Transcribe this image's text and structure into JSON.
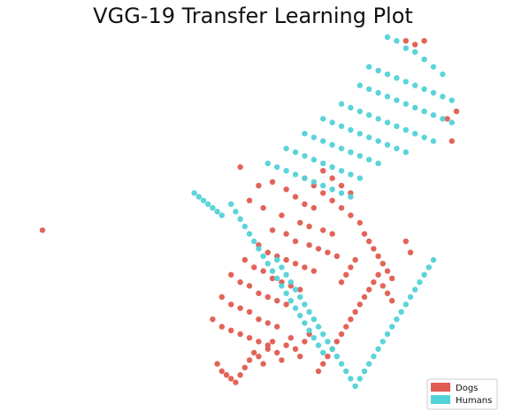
{
  "chart_data": {
    "type": "scatter",
    "title": "VGG-19 Transfer Learning Plot",
    "xlabel": "",
    "ylabel": "",
    "axes": "off",
    "grid": false,
    "legend_position": "bottom-right",
    "xlim": [
      0,
      100
    ],
    "ylim": [
      0,
      100
    ],
    "series": [
      {
        "name": "Dogs",
        "color": "#e05b50",
        "points": [
          [
            5,
            48
          ],
          [
            84,
            99
          ],
          [
            86,
            98
          ],
          [
            88,
            99
          ],
          [
            93,
            78
          ],
          [
            95,
            80
          ],
          [
            94,
            72
          ],
          [
            48,
            65
          ],
          [
            52,
            60
          ],
          [
            55,
            61
          ],
          [
            58,
            59
          ],
          [
            60,
            57
          ],
          [
            62,
            55
          ],
          [
            64,
            54
          ],
          [
            50,
            56
          ],
          [
            53,
            54
          ],
          [
            57,
            52
          ],
          [
            61,
            50
          ],
          [
            63,
            49
          ],
          [
            66,
            48
          ],
          [
            68,
            47
          ],
          [
            55,
            48
          ],
          [
            58,
            47
          ],
          [
            60,
            45
          ],
          [
            63,
            44
          ],
          [
            65,
            43
          ],
          [
            67,
            42
          ],
          [
            69,
            41
          ],
          [
            52,
            44
          ],
          [
            54,
            42
          ],
          [
            56,
            41
          ],
          [
            58,
            40
          ],
          [
            60,
            39
          ],
          [
            62,
            38
          ],
          [
            64,
            37
          ],
          [
            49,
            40
          ],
          [
            51,
            38
          ],
          [
            53,
            37
          ],
          [
            55,
            35
          ],
          [
            57,
            34
          ],
          [
            59,
            33
          ],
          [
            61,
            32
          ],
          [
            46,
            36
          ],
          [
            48,
            34
          ],
          [
            50,
            33
          ],
          [
            52,
            31
          ],
          [
            54,
            30
          ],
          [
            56,
            29
          ],
          [
            58,
            28
          ],
          [
            44,
            30
          ],
          [
            46,
            28
          ],
          [
            48,
            27
          ],
          [
            50,
            26
          ],
          [
            52,
            24
          ],
          [
            54,
            23
          ],
          [
            56,
            22
          ],
          [
            42,
            24
          ],
          [
            44,
            22
          ],
          [
            46,
            21
          ],
          [
            48,
            20
          ],
          [
            50,
            19
          ],
          [
            52,
            18
          ],
          [
            54,
            17
          ],
          [
            43,
            12
          ],
          [
            44,
            10
          ],
          [
            45,
            9
          ],
          [
            46,
            8
          ],
          [
            47,
            7
          ],
          [
            48,
            9
          ],
          [
            49,
            11
          ],
          [
            50,
            13
          ],
          [
            51,
            15
          ],
          [
            52,
            14
          ],
          [
            53,
            12
          ],
          [
            54,
            16
          ],
          [
            55,
            18
          ],
          [
            56,
            15
          ],
          [
            57,
            13
          ],
          [
            58,
            17
          ],
          [
            59,
            19
          ],
          [
            60,
            16
          ],
          [
            61,
            14
          ],
          [
            62,
            18
          ],
          [
            63,
            20
          ],
          [
            65,
            10
          ],
          [
            66,
            12
          ],
          [
            67,
            14
          ],
          [
            68,
            16
          ],
          [
            69,
            18
          ],
          [
            70,
            20
          ],
          [
            71,
            22
          ],
          [
            72,
            24
          ],
          [
            73,
            26
          ],
          [
            74,
            28
          ],
          [
            75,
            30
          ],
          [
            76,
            32
          ],
          [
            77,
            34
          ],
          [
            78,
            36
          ],
          [
            79,
            33
          ],
          [
            80,
            31
          ],
          [
            81,
            29
          ],
          [
            70,
            34
          ],
          [
            71,
            36
          ],
          [
            72,
            38
          ],
          [
            73,
            40
          ],
          [
            62,
            62
          ],
          [
            64,
            60
          ],
          [
            66,
            58
          ],
          [
            68,
            56
          ],
          [
            70,
            54
          ],
          [
            72,
            52
          ],
          [
            74,
            50
          ],
          [
            75,
            47
          ],
          [
            76,
            45
          ],
          [
            77,
            43
          ],
          [
            78,
            41
          ],
          [
            79,
            39
          ],
          [
            80,
            37
          ],
          [
            81,
            35
          ],
          [
            66,
            64
          ],
          [
            68,
            62
          ],
          [
            70,
            60
          ],
          [
            72,
            58
          ],
          [
            84,
            45
          ],
          [
            85,
            42
          ]
        ]
      },
      {
        "name": "Humans",
        "color": "#52d2d8",
        "points": [
          [
            80,
            100
          ],
          [
            82,
            99
          ],
          [
            84,
            97
          ],
          [
            86,
            96
          ],
          [
            88,
            94
          ],
          [
            90,
            92
          ],
          [
            92,
            90
          ],
          [
            76,
            92
          ],
          [
            78,
            91
          ],
          [
            80,
            90
          ],
          [
            82,
            89
          ],
          [
            84,
            88
          ],
          [
            86,
            87
          ],
          [
            88,
            86
          ],
          [
            90,
            85
          ],
          [
            92,
            84
          ],
          [
            94,
            83
          ],
          [
            74,
            87
          ],
          [
            76,
            86
          ],
          [
            78,
            85
          ],
          [
            80,
            84
          ],
          [
            82,
            83
          ],
          [
            84,
            82
          ],
          [
            86,
            81
          ],
          [
            88,
            80
          ],
          [
            90,
            79
          ],
          [
            92,
            78
          ],
          [
            94,
            77
          ],
          [
            70,
            82
          ],
          [
            72,
            81
          ],
          [
            74,
            80
          ],
          [
            76,
            79
          ],
          [
            78,
            78
          ],
          [
            80,
            77
          ],
          [
            82,
            76
          ],
          [
            84,
            75
          ],
          [
            86,
            74
          ],
          [
            88,
            73
          ],
          [
            90,
            72
          ],
          [
            66,
            78
          ],
          [
            68,
            77
          ],
          [
            70,
            76
          ],
          [
            72,
            75
          ],
          [
            74,
            74
          ],
          [
            76,
            73
          ],
          [
            78,
            72
          ],
          [
            80,
            71
          ],
          [
            82,
            70
          ],
          [
            84,
            69
          ],
          [
            62,
            74
          ],
          [
            64,
            73
          ],
          [
            66,
            72
          ],
          [
            68,
            71
          ],
          [
            70,
            70
          ],
          [
            72,
            69
          ],
          [
            74,
            68
          ],
          [
            76,
            67
          ],
          [
            78,
            66
          ],
          [
            58,
            70
          ],
          [
            60,
            69
          ],
          [
            62,
            68
          ],
          [
            64,
            67
          ],
          [
            66,
            66
          ],
          [
            68,
            65
          ],
          [
            70,
            64
          ],
          [
            72,
            63
          ],
          [
            74,
            62
          ],
          [
            54,
            66
          ],
          [
            56,
            65
          ],
          [
            58,
            64
          ],
          [
            60,
            63
          ],
          [
            62,
            62
          ],
          [
            64,
            61
          ],
          [
            66,
            60
          ],
          [
            68,
            59
          ],
          [
            70,
            58
          ],
          [
            72,
            57
          ],
          [
            38,
            58
          ],
          [
            39,
            57
          ],
          [
            40,
            56
          ],
          [
            41,
            55
          ],
          [
            42,
            54
          ],
          [
            43,
            53
          ],
          [
            44,
            52
          ],
          [
            46,
            55
          ],
          [
            47,
            53
          ],
          [
            48,
            51
          ],
          [
            49,
            49
          ],
          [
            50,
            47
          ],
          [
            51,
            45
          ],
          [
            52,
            43
          ],
          [
            53,
            41
          ],
          [
            54,
            39
          ],
          [
            55,
            37
          ],
          [
            56,
            35
          ],
          [
            57,
            33
          ],
          [
            58,
            31
          ],
          [
            59,
            29
          ],
          [
            60,
            27
          ],
          [
            61,
            25
          ],
          [
            62,
            23
          ],
          [
            63,
            21
          ],
          [
            64,
            19
          ],
          [
            65,
            17
          ],
          [
            66,
            15
          ],
          [
            56,
            40
          ],
          [
            57,
            38
          ],
          [
            58,
            36
          ],
          [
            59,
            34
          ],
          [
            60,
            32
          ],
          [
            61,
            30
          ],
          [
            62,
            28
          ],
          [
            63,
            26
          ],
          [
            64,
            24
          ],
          [
            65,
            22
          ],
          [
            66,
            20
          ],
          [
            67,
            18
          ],
          [
            68,
            16
          ],
          [
            69,
            14
          ],
          [
            70,
            12
          ],
          [
            71,
            10
          ],
          [
            72,
            8
          ],
          [
            73,
            6
          ],
          [
            74,
            8
          ],
          [
            75,
            10
          ],
          [
            76,
            12
          ],
          [
            77,
            14
          ],
          [
            78,
            16
          ],
          [
            79,
            18
          ],
          [
            80,
            20
          ],
          [
            81,
            22
          ],
          [
            82,
            24
          ],
          [
            83,
            26
          ],
          [
            84,
            28
          ],
          [
            85,
            30
          ],
          [
            86,
            32
          ],
          [
            87,
            34
          ],
          [
            88,
            36
          ],
          [
            89,
            38
          ],
          [
            90,
            40
          ]
        ]
      }
    ]
  },
  "legend": {
    "items": [
      {
        "label": "Dogs",
        "color": "#e05b50"
      },
      {
        "label": "Humans",
        "color": "#52d2d8"
      }
    ]
  }
}
